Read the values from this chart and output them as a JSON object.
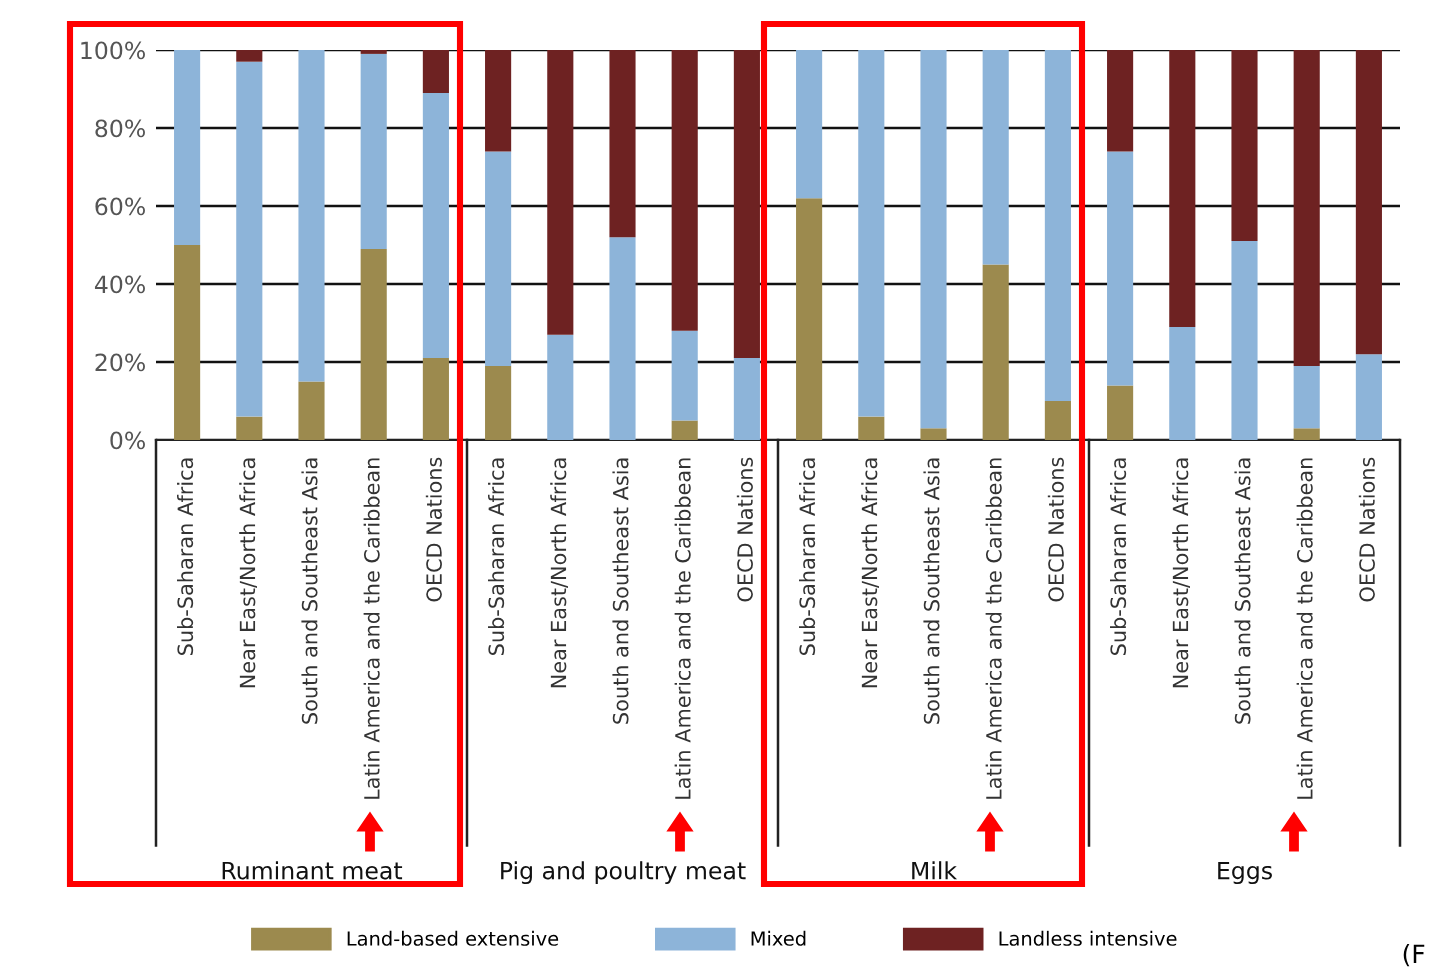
{
  "chart_data": {
    "type": "bar",
    "stacked": true,
    "categories": [
      "Sub-Saharan Africa",
      "Near East/North Africa",
      "South and Southeast Asia",
      "Latin America and the Caribbean",
      "OECD Nations",
      "Sub-Saharan Africa",
      "Near East/North Africa",
      "South and Southeast Asia",
      "Latin America and the Caribbean",
      "OECD Nations",
      "Sub-Saharan Africa",
      "Near East/North Africa",
      "South and Southeast Asia",
      "Latin America and the Caribbean",
      "OECD Nations",
      "Sub-Saharan Africa",
      "Near East/North Africa",
      "South and Southeast Asia",
      "Latin America and the Caribbean",
      "OECD Nations"
    ],
    "series": [
      {
        "name": "Land-based extensive",
        "color": "#9c8a4e",
        "values": [
          50,
          6,
          15,
          49,
          21,
          19,
          0,
          0,
          5,
          0,
          62,
          6,
          3,
          45,
          10,
          14,
          0,
          0,
          3,
          0
        ]
      },
      {
        "name": "Mixed",
        "color": "#8db4d9",
        "values": [
          50,
          91,
          85,
          50,
          68,
          55,
          27,
          52,
          23,
          21,
          38,
          94,
          97,
          55,
          90,
          60,
          29,
          51,
          16,
          22
        ]
      },
      {
        "name": "Landless intensive",
        "color": "#6e2222",
        "values": [
          0,
          3,
          0,
          1,
          11,
          26,
          73,
          48,
          72,
          79,
          0,
          0,
          0,
          0,
          0,
          26,
          71,
          49,
          81,
          78
        ]
      }
    ],
    "ylim": [
      0,
      100
    ],
    "yticks": [
      {
        "value": 0,
        "label": "0%"
      },
      {
        "value": 20,
        "label": "20%"
      },
      {
        "value": 40,
        "label": "40%"
      },
      {
        "value": 60,
        "label": "60%"
      },
      {
        "value": 80,
        "label": "80%"
      },
      {
        "value": 100,
        "label": "100%"
      }
    ],
    "grid": "y",
    "legend": "bottom",
    "annotations": [
      "Ruminant meat",
      "Pig and poultry meat",
      "Milk",
      "Eggs",
      "(F"
    ]
  }
}
